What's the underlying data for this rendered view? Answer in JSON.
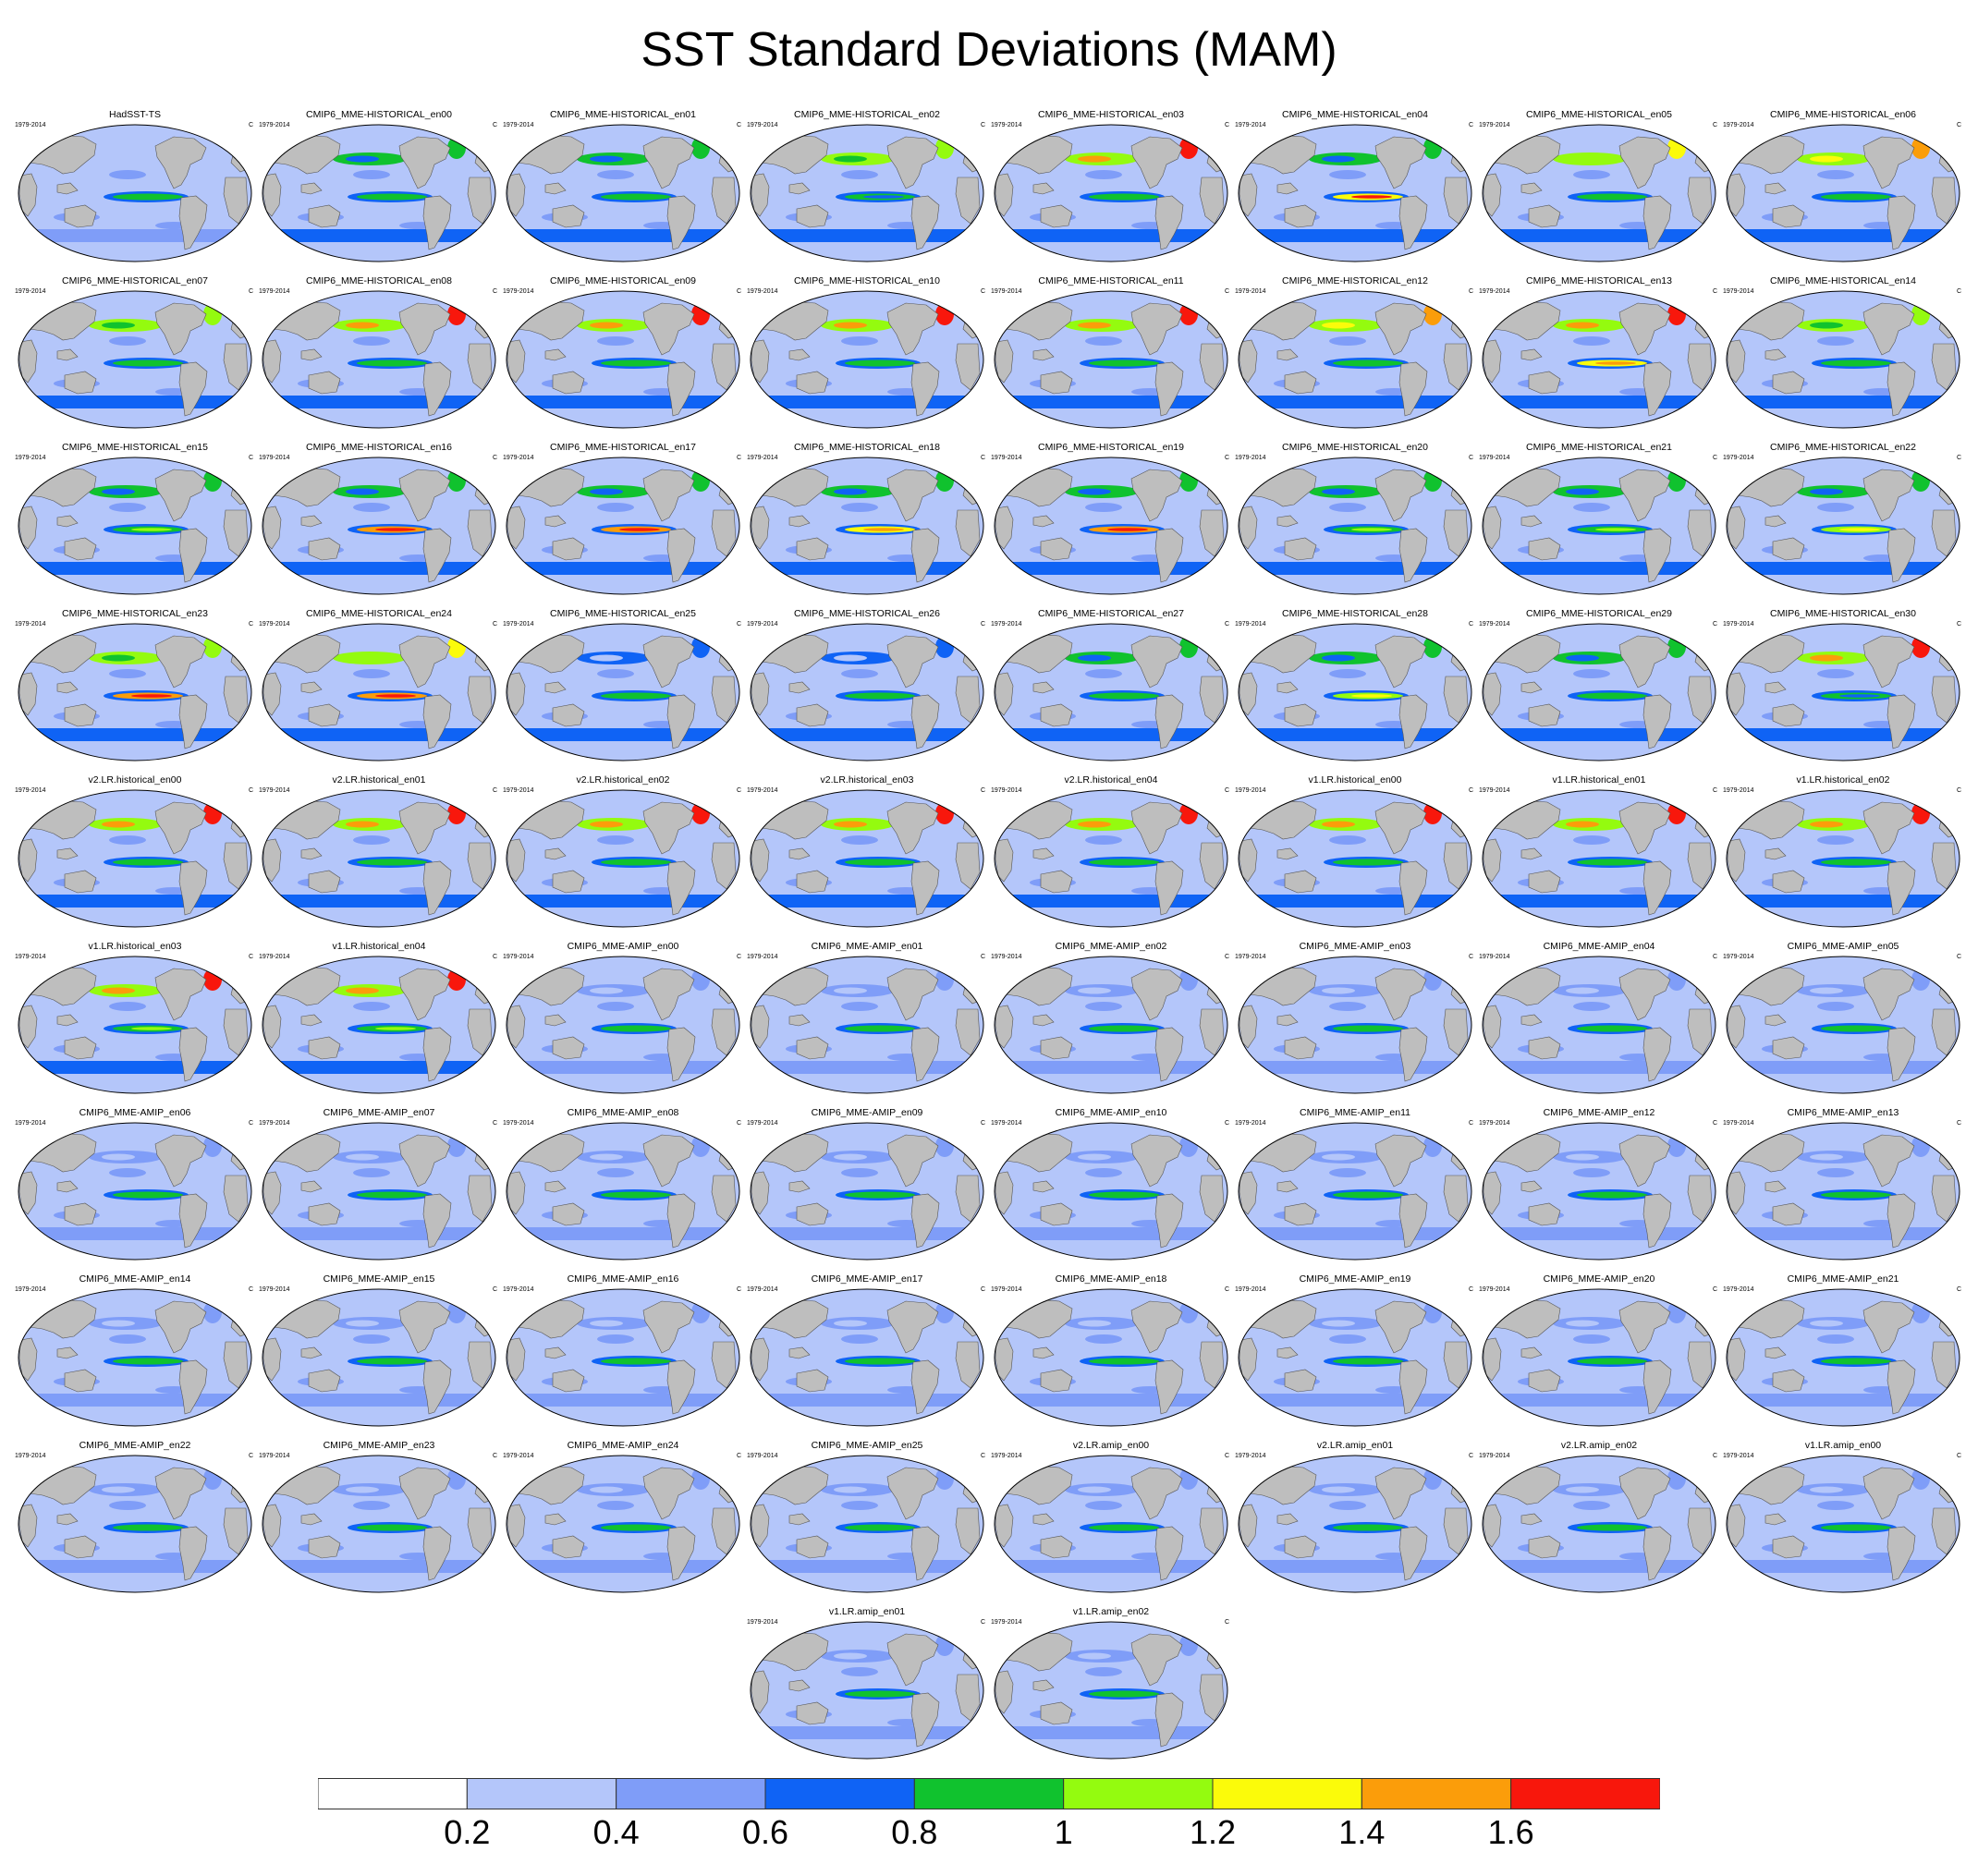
{
  "title": "SST Standard Deviations (MAM)",
  "panel_common": {
    "period": "1979-2014",
    "units": "C"
  },
  "palette": [
    "#ffffff",
    "#b4c6fa",
    "#7f9df8",
    "#0f63f5",
    "#10c22e",
    "#94fb0f",
    "#fbfb0a",
    "#fb9d0a",
    "#f8170c"
  ],
  "panels": [
    {
      "title": "HadSST-TS",
      "eq": 0.9,
      "nh": 0.35
    },
    {
      "title": "CMIP6_MME-HISTORICAL_en00",
      "eq": 0.9,
      "nh": 0.9
    },
    {
      "title": "CMIP6_MME-HISTORICAL_en01",
      "eq": 0.8,
      "nh": 0.9
    },
    {
      "title": "CMIP6_MME-HISTORICAL_en02",
      "eq": 0.7,
      "nh": 1.1
    },
    {
      "title": "CMIP6_MME-HISTORICAL_en03",
      "eq": 0.9,
      "nh": 1.7
    },
    {
      "title": "CMIP6_MME-HISTORICAL_en04",
      "eq": 1.6,
      "nh": 0.9
    },
    {
      "title": "CMIP6_MME-HISTORICAL_en05",
      "eq": 0.9,
      "nh": 1.3
    },
    {
      "title": "CMIP6_MME-HISTORICAL_en06",
      "eq": 0.9,
      "nh": 1.5
    },
    {
      "title": "CMIP6_MME-HISTORICAL_en07",
      "eq": 0.9,
      "nh": 1.1
    },
    {
      "title": "CMIP6_MME-HISTORICAL_en08",
      "eq": 0.9,
      "nh": 1.7
    },
    {
      "title": "CMIP6_MME-HISTORICAL_en09",
      "eq": 0.9,
      "nh": 1.7
    },
    {
      "title": "CMIP6_MME-HISTORICAL_en10",
      "eq": 0.9,
      "nh": 1.7
    },
    {
      "title": "CMIP6_MME-HISTORICAL_en11",
      "eq": 0.9,
      "nh": 1.7
    },
    {
      "title": "CMIP6_MME-HISTORICAL_en12",
      "eq": 0.9,
      "nh": 1.5
    },
    {
      "title": "CMIP6_MME-HISTORICAL_en13",
      "eq": 1.5,
      "nh": 1.7
    },
    {
      "title": "CMIP6_MME-HISTORICAL_en14",
      "eq": 0.9,
      "nh": 1.1
    },
    {
      "title": "CMIP6_MME-HISTORICAL_en15",
      "eq": 1.1,
      "nh": 0.9
    },
    {
      "title": "CMIP6_MME-HISTORICAL_en16",
      "eq": 1.7,
      "nh": 0.9
    },
    {
      "title": "CMIP6_MME-HISTORICAL_en17",
      "eq": 1.7,
      "nh": 0.9
    },
    {
      "title": "CMIP6_MME-HISTORICAL_en18",
      "eq": 1.5,
      "nh": 0.9
    },
    {
      "title": "CMIP6_MME-HISTORICAL_en19",
      "eq": 1.7,
      "nh": 0.9
    },
    {
      "title": "CMIP6_MME-HISTORICAL_en20",
      "eq": 1.1,
      "nh": 0.9
    },
    {
      "title": "CMIP6_MME-HISTORICAL_en21",
      "eq": 1.1,
      "nh": 0.9
    },
    {
      "title": "CMIP6_MME-HISTORICAL_en22",
      "eq": 1.3,
      "nh": 0.9
    },
    {
      "title": "CMIP6_MME-HISTORICAL_en23",
      "eq": 1.7,
      "nh": 1.1
    },
    {
      "title": "CMIP6_MME-HISTORICAL_en24",
      "eq": 1.7,
      "nh": 1.3
    },
    {
      "title": "CMIP6_MME-HISTORICAL_en25",
      "eq": 0.9,
      "nh": 0.7
    },
    {
      "title": "CMIP6_MME-HISTORICAL_en26",
      "eq": 0.9,
      "nh": 0.7
    },
    {
      "title": "CMIP6_MME-HISTORICAL_en27",
      "eq": 0.9,
      "nh": 0.9
    },
    {
      "title": "CMIP6_MME-HISTORICAL_en28",
      "eq": 1.3,
      "nh": 0.9
    },
    {
      "title": "CMIP6_MME-HISTORICAL_en29",
      "eq": 0.9,
      "nh": 0.9
    },
    {
      "title": "CMIP6_MME-HISTORICAL_en30",
      "eq": 0.7,
      "nh": 1.7
    },
    {
      "title": "v2.LR.historical_en00",
      "eq": 0.9,
      "nh": 1.7
    },
    {
      "title": "v2.LR.historical_en01",
      "eq": 0.9,
      "nh": 1.7
    },
    {
      "title": "v2.LR.historical_en02",
      "eq": 0.9,
      "nh": 1.7
    },
    {
      "title": "v2.LR.historical_en03",
      "eq": 0.9,
      "nh": 1.7
    },
    {
      "title": "v2.LR.historical_en04",
      "eq": 0.9,
      "nh": 1.7
    },
    {
      "title": "v1.LR.historical_en00",
      "eq": 0.9,
      "nh": 1.7
    },
    {
      "title": "v1.LR.historical_en01",
      "eq": 0.9,
      "nh": 1.7
    },
    {
      "title": "v1.LR.historical_en02",
      "eq": 0.9,
      "nh": 1.7
    },
    {
      "title": "v1.LR.historical_en03",
      "eq": 1.1,
      "nh": 1.7
    },
    {
      "title": "v1.LR.historical_en04",
      "eq": 1.1,
      "nh": 1.7
    },
    {
      "title": "CMIP6_MME-AMIP_en00",
      "eq": 0.9,
      "nh": 0.5
    },
    {
      "title": "CMIP6_MME-AMIP_en01",
      "eq": 0.9,
      "nh": 0.5
    },
    {
      "title": "CMIP6_MME-AMIP_en02",
      "eq": 0.9,
      "nh": 0.5
    },
    {
      "title": "CMIP6_MME-AMIP_en03",
      "eq": 0.9,
      "nh": 0.5
    },
    {
      "title": "CMIP6_MME-AMIP_en04",
      "eq": 0.9,
      "nh": 0.5
    },
    {
      "title": "CMIP6_MME-AMIP_en05",
      "eq": 0.9,
      "nh": 0.5
    },
    {
      "title": "CMIP6_MME-AMIP_en06",
      "eq": 0.9,
      "nh": 0.5
    },
    {
      "title": "CMIP6_MME-AMIP_en07",
      "eq": 0.9,
      "nh": 0.5
    },
    {
      "title": "CMIP6_MME-AMIP_en08",
      "eq": 0.9,
      "nh": 0.5
    },
    {
      "title": "CMIP6_MME-AMIP_en09",
      "eq": 0.9,
      "nh": 0.5
    },
    {
      "title": "CMIP6_MME-AMIP_en10",
      "eq": 0.9,
      "nh": 0.5
    },
    {
      "title": "CMIP6_MME-AMIP_en11",
      "eq": 0.9,
      "nh": 0.5
    },
    {
      "title": "CMIP6_MME-AMIP_en12",
      "eq": 0.9,
      "nh": 0.5
    },
    {
      "title": "CMIP6_MME-AMIP_en13",
      "eq": 0.9,
      "nh": 0.5
    },
    {
      "title": "CMIP6_MME-AMIP_en14",
      "eq": 0.9,
      "nh": 0.5
    },
    {
      "title": "CMIP6_MME-AMIP_en15",
      "eq": 0.9,
      "nh": 0.5
    },
    {
      "title": "CMIP6_MME-AMIP_en16",
      "eq": 0.9,
      "nh": 0.5
    },
    {
      "title": "CMIP6_MME-AMIP_en17",
      "eq": 0.9,
      "nh": 0.5
    },
    {
      "title": "CMIP6_MME-AMIP_en18",
      "eq": 0.9,
      "nh": 0.5
    },
    {
      "title": "CMIP6_MME-AMIP_en19",
      "eq": 0.9,
      "nh": 0.5
    },
    {
      "title": "CMIP6_MME-AMIP_en20",
      "eq": 0.9,
      "nh": 0.5
    },
    {
      "title": "CMIP6_MME-AMIP_en21",
      "eq": 0.9,
      "nh": 0.5
    },
    {
      "title": "CMIP6_MME-AMIP_en22",
      "eq": 0.9,
      "nh": 0.5
    },
    {
      "title": "CMIP6_MME-AMIP_en23",
      "eq": 0.9,
      "nh": 0.5
    },
    {
      "title": "CMIP6_MME-AMIP_en24",
      "eq": 0.9,
      "nh": 0.5
    },
    {
      "title": "CMIP6_MME-AMIP_en25",
      "eq": 0.9,
      "nh": 0.5
    },
    {
      "title": "v2.LR.amip_en00",
      "eq": 0.9,
      "nh": 0.5
    },
    {
      "title": "v2.LR.amip_en01",
      "eq": 0.9,
      "nh": 0.5
    },
    {
      "title": "v2.LR.amip_en02",
      "eq": 0.9,
      "nh": 0.5
    },
    {
      "title": "v1.LR.amip_en00",
      "eq": 0.9,
      "nh": 0.5
    },
    {
      "title": "v1.LR.amip_en01",
      "eq": 0.9,
      "nh": 0.5
    },
    {
      "title": "v1.LR.amip_en02",
      "eq": 0.9,
      "nh": 0.5
    }
  ],
  "chart_data": {
    "type": "heatmap",
    "title": "SST Standard Deviations (MAM)",
    "colorbar": {
      "levels": [
        0.2,
        0.4,
        0.6,
        0.8,
        1,
        1.2,
        1.4,
        1.6
      ],
      "tick_labels": [
        "0.2",
        "0.4",
        "0.6",
        "0.8",
        "1",
        "1.2",
        "1.4",
        "1.6"
      ],
      "range": [
        0,
        1.8
      ]
    }
  }
}
